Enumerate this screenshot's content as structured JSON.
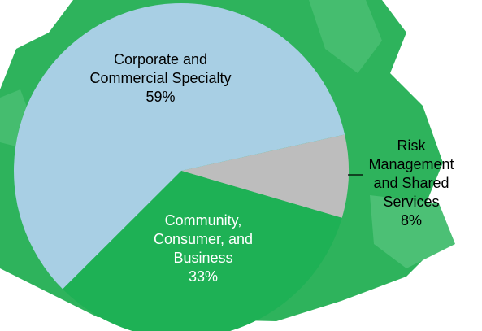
{
  "chart_data": {
    "type": "pie",
    "categories": [
      "Risk Management and Shared Services",
      "Community, Consumer, and Business",
      "Corporate and Commercial Specialty"
    ],
    "values": [
      8,
      33,
      59
    ],
    "value_labels": [
      "8%",
      "33%",
      "59%"
    ],
    "colors": [
      "#bdbdbd",
      "#1eb155",
      "#a8cfe4"
    ]
  }
}
